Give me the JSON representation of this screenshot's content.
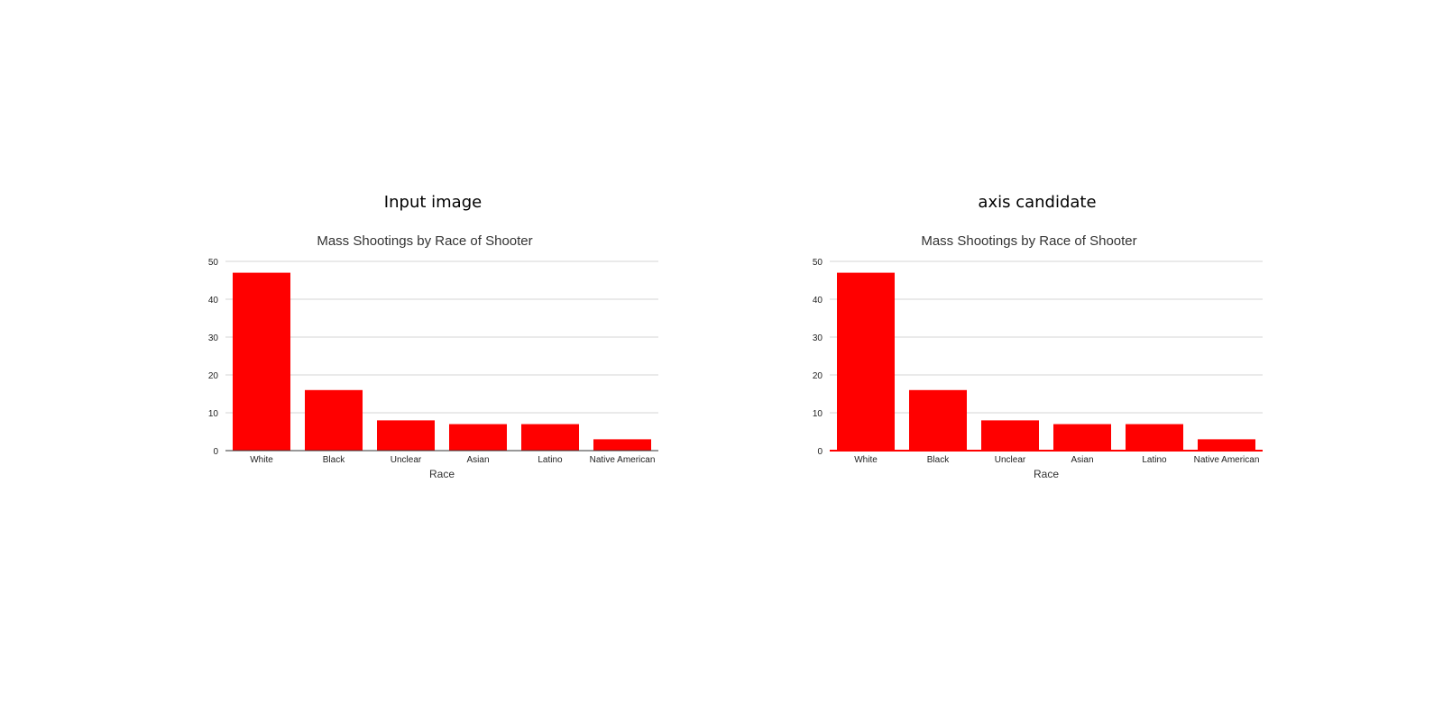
{
  "panels": [
    {
      "heading": "Input image",
      "axis_color": "#333333"
    },
    {
      "heading": "axis candidate",
      "axis_color": "#ff0000"
    }
  ],
  "chart_data": [
    {
      "type": "bar",
      "title": "Mass Shootings by Race of Shooter",
      "xlabel": "Race",
      "ylabel": "",
      "categories": [
        "White",
        "Black",
        "Unclear",
        "Asian",
        "Latino",
        "Native American"
      ],
      "values": [
        47,
        16,
        8,
        7,
        7,
        3
      ],
      "ylim": [
        0,
        50
      ],
      "yticks": [
        0,
        10,
        20,
        30,
        40,
        50
      ],
      "bar_color": "#ff0000",
      "grid": true
    },
    {
      "type": "bar",
      "title": "Mass Shootings by Race of Shooter",
      "xlabel": "Race",
      "ylabel": "",
      "categories": [
        "White",
        "Black",
        "Unclear",
        "Asian",
        "Latino",
        "Native American"
      ],
      "values": [
        47,
        16,
        8,
        7,
        7,
        3
      ],
      "ylim": [
        0,
        50
      ],
      "yticks": [
        0,
        10,
        20,
        30,
        40,
        50
      ],
      "bar_color": "#ff0000",
      "grid": true
    }
  ]
}
